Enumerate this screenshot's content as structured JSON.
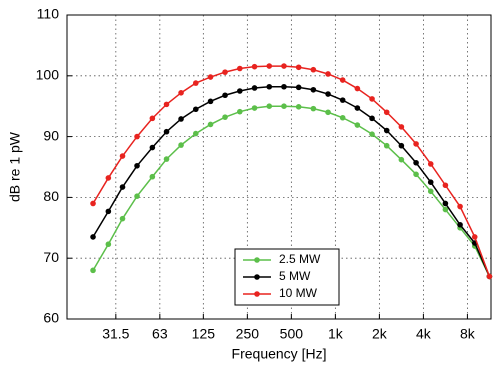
{
  "chart_data": {
    "type": "line",
    "xlabel": "Frequency [Hz]",
    "ylabel": "dB re 1 pW",
    "x": [
      22,
      28,
      35,
      44,
      56,
      70,
      88,
      111,
      140,
      176,
      222,
      280,
      353,
      445,
      561,
      707,
      891,
      1122,
      1414,
      1782,
      2245,
      2828,
      3564,
      4490,
      5657,
      7127,
      8980,
      11314
    ],
    "series": [
      {
        "name": "2.5 MW",
        "color": "#5cbf4a",
        "values": [
          68,
          72.3,
          76.5,
          80.2,
          83.4,
          86.3,
          88.6,
          90.5,
          92,
          93.2,
          94.1,
          94.7,
          95,
          95,
          94.9,
          94.6,
          94,
          93.1,
          91.9,
          90.4,
          88.5,
          86.2,
          83.8,
          81,
          78,
          75,
          72,
          67
        ]
      },
      {
        "name": "5 MW",
        "color": "#000000",
        "values": [
          73.5,
          77.7,
          81.7,
          85.2,
          88.2,
          90.8,
          92.9,
          94.5,
          95.8,
          96.8,
          97.5,
          98,
          98.2,
          98.2,
          98.1,
          97.7,
          97,
          96,
          94.7,
          93,
          91,
          88.5,
          85.7,
          82.5,
          79,
          75.5,
          72.5,
          67
        ]
      },
      {
        "name": "10 MW",
        "color": "#e8231f",
        "values": [
          79,
          83.2,
          86.8,
          90,
          93,
          95.3,
          97.2,
          98.8,
          99.8,
          100.6,
          101.2,
          101.5,
          101.6,
          101.6,
          101.4,
          101,
          100.3,
          99.3,
          97.9,
          96.2,
          94,
          91.6,
          88.8,
          85.5,
          82,
          78.5,
          73.5,
          67
        ]
      }
    ],
    "xscale": "log",
    "xlim": [
      14.6,
      11600
    ],
    "xticks": [
      {
        "value": 31.5,
        "label": "31.5"
      },
      63,
      125,
      250,
      500,
      {
        "value": 1000,
        "label": "1k"
      },
      {
        "value": 2000,
        "label": "2k"
      },
      {
        "value": 4000,
        "label": "4k"
      },
      {
        "value": 8000,
        "label": "8k"
      }
    ],
    "ylim": [
      60,
      110
    ],
    "yticks": [
      60,
      70,
      80,
      90,
      100,
      110
    ],
    "grid": true,
    "legend": "lower center"
  }
}
